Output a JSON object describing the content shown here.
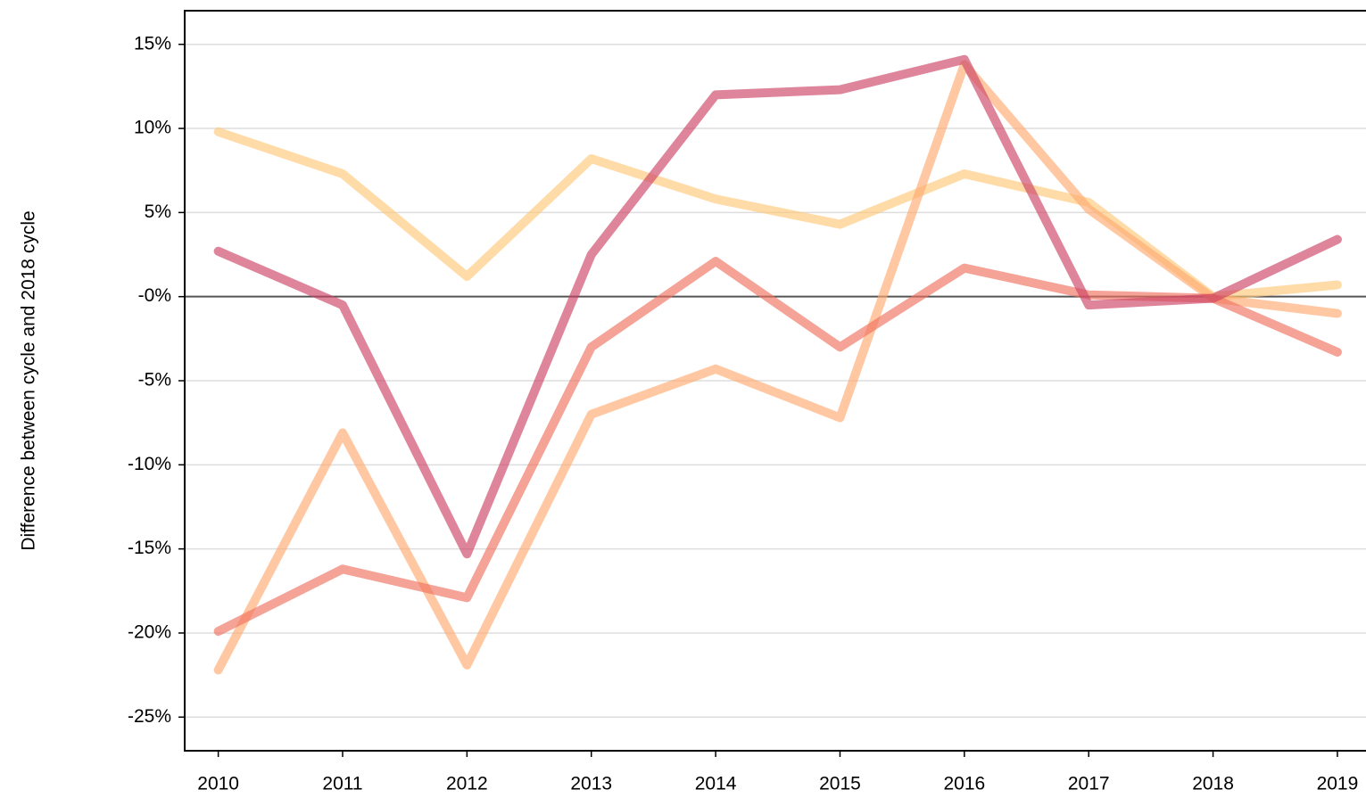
{
  "chart_data": {
    "type": "line",
    "y_label": "Difference between cycle and 2018 cycle",
    "x": [
      2010,
      2011,
      2012,
      2013,
      2014,
      2015,
      2016,
      2017,
      2018,
      2019
    ],
    "xlim": [
      2009.73,
      2019.23
    ],
    "xticks": [
      2010,
      2011,
      2012,
      2013,
      2014,
      2015,
      2016,
      2017,
      2018,
      2019
    ],
    "ylim": [
      -27,
      17
    ],
    "yticks": [
      {
        "value": -25,
        "label": "-25%"
      },
      {
        "value": -20,
        "label": "-20%"
      },
      {
        "value": -15,
        "label": "-15%"
      },
      {
        "value": -10,
        "label": "-10%"
      },
      {
        "value": -5,
        "label": "-5%"
      },
      {
        "value": 0,
        "label": "-0%"
      },
      {
        "value": 5,
        "label": "5%"
      },
      {
        "value": 10,
        "label": "10%"
      },
      {
        "value": 15,
        "label": "15%"
      }
    ],
    "grid": true,
    "series": [
      {
        "color": "#ffc87a",
        "values": [
          9.8,
          7.3,
          1.2,
          8.2,
          5.8,
          4.3,
          7.3,
          5.6,
          0,
          0.7
        ]
      },
      {
        "color": "#ffab70",
        "values": [
          -22.2,
          -8.1,
          -21.9,
          -7.0,
          -4.3,
          -7.2,
          13.8,
          5.2,
          -0.1,
          -1.0
        ]
      },
      {
        "color": "#f07060",
        "values": [
          -19.9,
          -16.2,
          -17.9,
          -3.0,
          2.1,
          -3.0,
          1.7,
          0.1,
          -0.1,
          -3.3
        ]
      },
      {
        "color": "#cc4466",
        "values": [
          2.7,
          -0.5,
          -15.3,
          2.5,
          12.0,
          12.3,
          14.1,
          -0.5,
          -0.1,
          3.4
        ]
      }
    ]
  }
}
